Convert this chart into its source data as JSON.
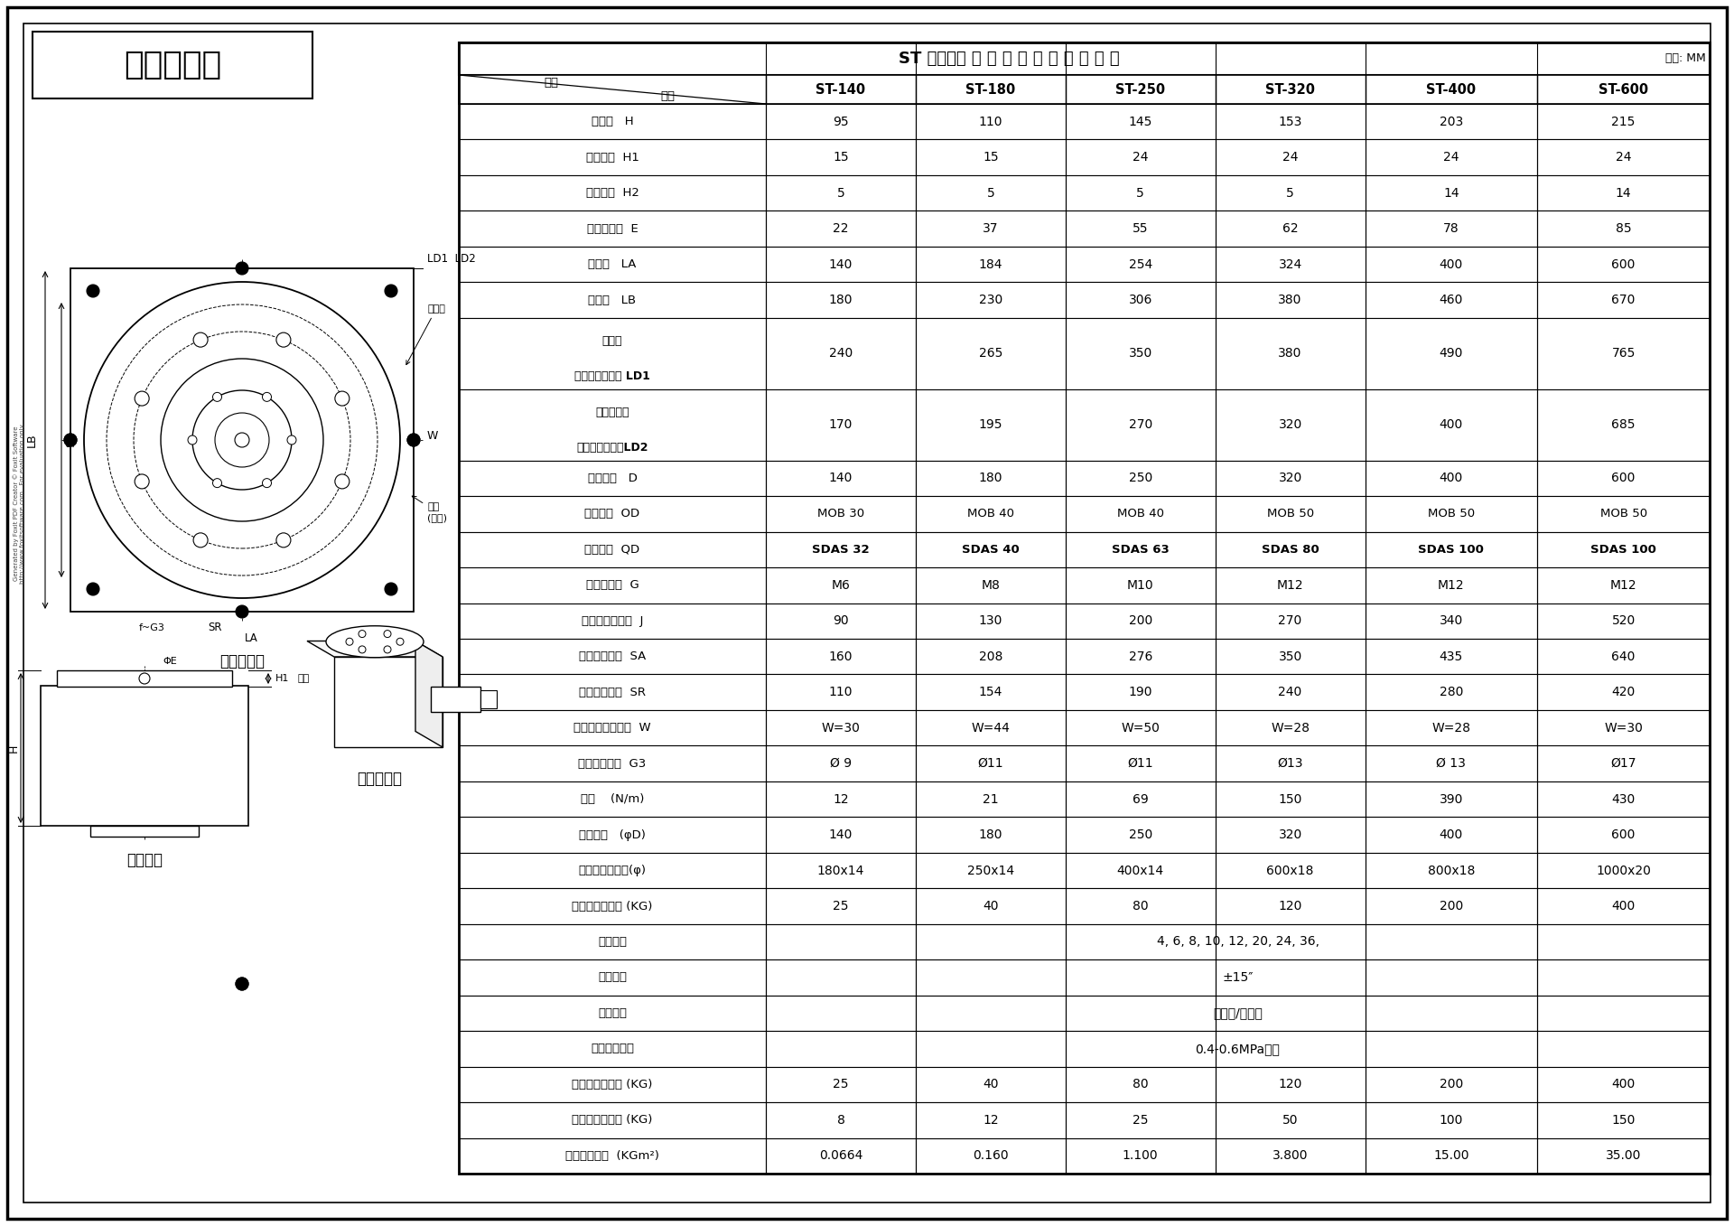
{
  "title": "顺时针旋转",
  "table_title": "ST 立式系列 气 动 分 度 盘 技 术 参 数 表",
  "table_unit": "单位: MM",
  "col_headers": [
    "名称  \\  型号",
    "ST-140",
    "ST-180",
    "ST-250",
    "ST-320",
    "ST-400",
    "ST-600"
  ],
  "rows": [
    [
      "中心高   H",
      "95",
      "110",
      "145",
      "153",
      "203",
      "215"
    ],
    [
      "转盘厚度  H1",
      "15",
      "15",
      "24",
      "24",
      "24",
      "24"
    ],
    [
      "定位高度  H2",
      "5",
      "5",
      "5",
      "5",
      "14",
      "14"
    ],
    [
      "定位孔直径  E",
      "22",
      "37",
      "55",
      "62",
      "78",
      "85"
    ],
    [
      "底座宽   LA",
      "140",
      "184",
      "254",
      "324",
      "400",
      "600"
    ],
    [
      "底座长   LB",
      "180",
      "230",
      "306",
      "380",
      "460",
      "670"
    ],
    [
      "三工位\n气缸底到模中心 LD1",
      "240",
      "265",
      "350",
      "380",
      "490",
      "765"
    ],
    [
      "四工位以上\n气缸底到模中心LD2",
      "170",
      "195",
      "270",
      "320",
      "400",
      "685"
    ],
    [
      "转盘直径   D",
      "140",
      "180",
      "250",
      "320",
      "400",
      "600"
    ],
    [
      "油缸直径  OD",
      "MOB 30",
      "MOB 40",
      "MOB 40",
      "MOB 50",
      "MOB 50",
      "MOB 50"
    ],
    [
      "气缸直径  QD",
      "SDAS 32",
      "SDAS 40",
      "SDAS 63",
      "SDAS 80",
      "SDAS 100",
      "SDAS 100"
    ],
    [
      "转盘安装孔  G",
      "M6",
      "M8",
      "M10",
      "M12",
      "M12",
      "M12"
    ],
    [
      "安装孔径中心距  J",
      "90",
      "130",
      "200",
      "270",
      "340",
      "520"
    ],
    [
      "底座安装孔距  SA",
      "160",
      "208",
      "276",
      "350",
      "435",
      "640"
    ],
    [
      "底座安装孔距  SR",
      "110",
      "154",
      "190",
      "240",
      "280",
      "420"
    ],
    [
      "缓冲器底到模侧面  W",
      "W=30",
      "W=44",
      "W=50",
      "W=28",
      "W=28",
      "W=30"
    ],
    [
      "底座安装孔径  G3",
      "Ø 9",
      "Ø11",
      "Ø11",
      "Ø13",
      "Ø 13",
      "Ø17"
    ],
    [
      "扭矩    (N/m)",
      "12",
      "21",
      "69",
      "150",
      "390",
      "430"
    ],
    [
      "面板直径   (φD)",
      "140",
      "180",
      "250",
      "320",
      "400",
      "600"
    ],
    [
      "最大工装板直径(φ)",
      "180x14",
      "250x14",
      "400x14",
      "600x18",
      "800x18",
      "1000x20"
    ],
    [
      "最大静态承重量 (KG)",
      "25",
      "40",
      "80",
      "120",
      "200",
      "400"
    ],
    [
      "标准等分",
      "MERGED:4, 6, 8, 10, 12, 20, 24, 36,",
      "",
      "",
      "",
      "",
      ""
    ],
    [
      "重复精度",
      "MERGED:±15″",
      "",
      "",
      "",
      "",
      ""
    ],
    [
      "回转方向",
      "MERGED:顺时针/逆时针",
      "",
      "",
      "",
      "",
      ""
    ],
    [
      "使用流体压力",
      "MERGED:0.4-0.6MPa空气",
      "",
      "",
      "",
      "",
      ""
    ],
    [
      "最大静态承受力 (KG)",
      "25",
      "40",
      "80",
      "120",
      "200",
      "400"
    ],
    [
      "最大动态承受力 (KG)",
      "8",
      "12",
      "25",
      "50",
      "100",
      "150"
    ],
    [
      "允许转动惯量  (KGm²)",
      "0.0664",
      "0.160",
      "1.100",
      "3.800",
      "15.00",
      "35.00"
    ]
  ],
  "watermark_line1": "Generated by Foxit PDF Creator © Foxit Software",
  "watermark_line2": "http://www.foxitsoftware.com   For evaluation only.",
  "bg_color": "#ffffff"
}
